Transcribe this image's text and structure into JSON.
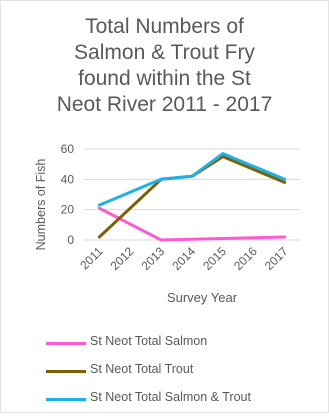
{
  "chart_data": {
    "type": "line",
    "title_lines": [
      "Total Numbers of",
      "Salmon & Trout Fry",
      "found within the St",
      "Neot River 2011 - 2017"
    ],
    "xlabel": "Survey Year",
    "ylabel": "Numbers of Fish",
    "categories": [
      "2011",
      "2012",
      "2013",
      "2014",
      "2015",
      "2016",
      "2017"
    ],
    "y_ticks": [
      "0",
      "20",
      "40",
      "60"
    ],
    "ylim": [
      0,
      60
    ],
    "grid": true,
    "legend_position": "bottom",
    "series": [
      {
        "name": "St Neot Total Salmon",
        "color": "#ff5bd0",
        "x": [
          "2011",
          "2013",
          "2015",
          "2017"
        ],
        "values": [
          21,
          0,
          1,
          2
        ]
      },
      {
        "name": "St Neot Total Trout",
        "color": "#7f6000",
        "x": [
          "2011",
          "2013",
          "2014",
          "2015",
          "2017"
        ],
        "values": [
          2,
          40,
          42,
          55,
          38
        ]
      },
      {
        "name": "St Neot Total Salmon & Trout",
        "color": "#1ab2e8",
        "x": [
          "2011",
          "2013",
          "2014",
          "2015",
          "2017"
        ],
        "values": [
          23,
          40,
          42,
          57,
          40
        ]
      }
    ]
  }
}
